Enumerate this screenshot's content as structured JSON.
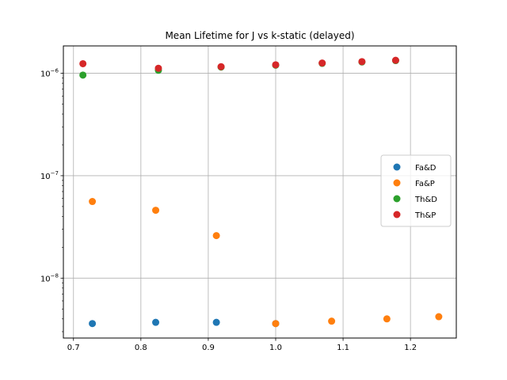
{
  "chart_data": {
    "type": "scatter",
    "title": "Mean Lifetime for J vs k-static (delayed)",
    "xlabel": "",
    "ylabel": "",
    "yscale": "log",
    "xlim": [
      0.685,
      1.268
    ],
    "ylim": [
      2.6e-09,
      1.85e-06
    ],
    "grid": true,
    "legend_position": "center-right",
    "x_ticks": [
      0.7,
      0.8,
      0.9,
      1.0,
      1.1,
      1.2
    ],
    "x_tick_labels": [
      "0.7",
      "0.8",
      "0.9",
      "1.0",
      "1.1",
      "1.2"
    ],
    "y_ticks": [
      1e-08,
      1e-07,
      1e-06
    ],
    "y_tick_labels": [
      "10",
      "10",
      "10"
    ],
    "y_tick_exponents": [
      "−8",
      "−7",
      "−6"
    ],
    "series": [
      {
        "name": "Fa&D",
        "color": "#1f77b4",
        "points": [
          [
            0.728,
            3.6e-09
          ],
          [
            0.822,
            3.7e-09
          ],
          [
            0.912,
            3.7e-09
          ],
          [
            1.0,
            3.6e-09
          ]
        ]
      },
      {
        "name": "Fa&P",
        "color": "#ff7f0e",
        "points": [
          [
            0.728,
            5.6e-08
          ],
          [
            0.822,
            4.6e-08
          ],
          [
            0.912,
            2.6e-08
          ],
          [
            1.0,
            3.6e-09
          ],
          [
            1.083,
            3.8e-09
          ],
          [
            1.165,
            4e-09
          ],
          [
            1.242,
            4.2e-09
          ]
        ]
      },
      {
        "name": "Th&D",
        "color": "#2ca02c",
        "points": [
          [
            0.714,
            9.6e-07
          ],
          [
            0.826,
            1.07e-06
          ],
          [
            0.919,
            1.15e-06
          ],
          [
            1.0,
            1.2e-06
          ],
          [
            1.069,
            1.25e-06
          ],
          [
            1.128,
            1.29e-06
          ],
          [
            1.178,
            1.33e-06
          ]
        ]
      },
      {
        "name": "Th&P",
        "color": "#d62728",
        "points": [
          [
            0.714,
            1.24e-06
          ],
          [
            0.826,
            1.12e-06
          ],
          [
            0.919,
            1.16e-06
          ],
          [
            1.0,
            1.21e-06
          ],
          [
            1.069,
            1.26e-06
          ],
          [
            1.128,
            1.3e-06
          ],
          [
            1.178,
            1.34e-06
          ]
        ]
      }
    ]
  }
}
